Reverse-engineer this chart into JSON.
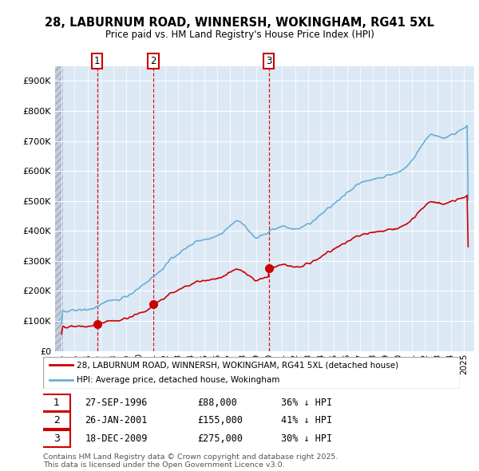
{
  "title": "28, LABURNUM ROAD, WINNERSH, WOKINGHAM, RG41 5XL",
  "subtitle": "Price paid vs. HM Land Registry's House Price Index (HPI)",
  "hpi_color": "#6aaed6",
  "price_color": "#cc0000",
  "bg_color": "#dce9f5",
  "grid_color": "#ffffff",
  "purchases": [
    {
      "date_num": 1996.74,
      "price": 88000,
      "label": "1",
      "date_str": "27-SEP-1996",
      "pct": "36% ↓ HPI"
    },
    {
      "date_num": 2001.07,
      "price": 155000,
      "label": "2",
      "date_str": "26-JAN-2001",
      "pct": "41% ↓ HPI"
    },
    {
      "date_num": 2009.96,
      "price": 275000,
      "label": "3",
      "date_str": "18-DEC-2009",
      "pct": "30% ↓ HPI"
    }
  ],
  "legend_label_price": "28, LABURNUM ROAD, WINNERSH, WOKINGHAM, RG41 5XL (detached house)",
  "legend_label_hpi": "HPI: Average price, detached house, Wokingham",
  "footer": "Contains HM Land Registry data © Crown copyright and database right 2025.\nThis data is licensed under the Open Government Licence v3.0.",
  "ylim": [
    0,
    950000
  ],
  "yticks": [
    0,
    100000,
    200000,
    300000,
    400000,
    500000,
    600000,
    700000,
    800000,
    900000
  ],
  "xlim_start": 1993.5,
  "xlim_end": 2025.8
}
